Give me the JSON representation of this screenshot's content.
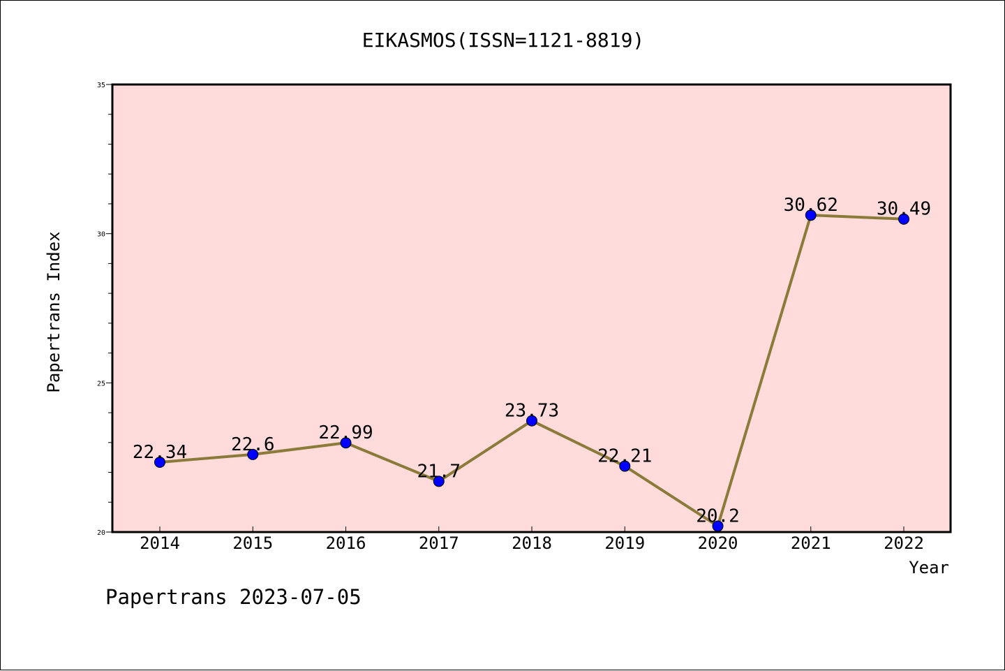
{
  "chart_data": {
    "type": "line",
    "title": "EIKASMOS(ISSN=1121-8819)",
    "xlabel": "Year",
    "ylabel": "Papertrans Index",
    "categories": [
      "2014",
      "2015",
      "2016",
      "2017",
      "2018",
      "2019",
      "2020",
      "2021",
      "2022"
    ],
    "values": [
      22.34,
      22.6,
      22.99,
      21.7,
      23.73,
      22.21,
      20.2,
      30.62,
      30.49
    ],
    "value_labels": [
      "22.34",
      "22.6",
      "22.99",
      "21.7",
      "23.73",
      "22.21",
      "20.2",
      "30.62",
      "30.49"
    ],
    "ylim": [
      20,
      35
    ],
    "yticks": [
      "20",
      "25",
      "30",
      "35"
    ],
    "grid": false,
    "line_color": "#8B7B3A",
    "marker_color": "#0000FF",
    "plot_background": "#FFDCDB"
  },
  "footer": {
    "caption": "Papertrans 2023-07-05"
  }
}
